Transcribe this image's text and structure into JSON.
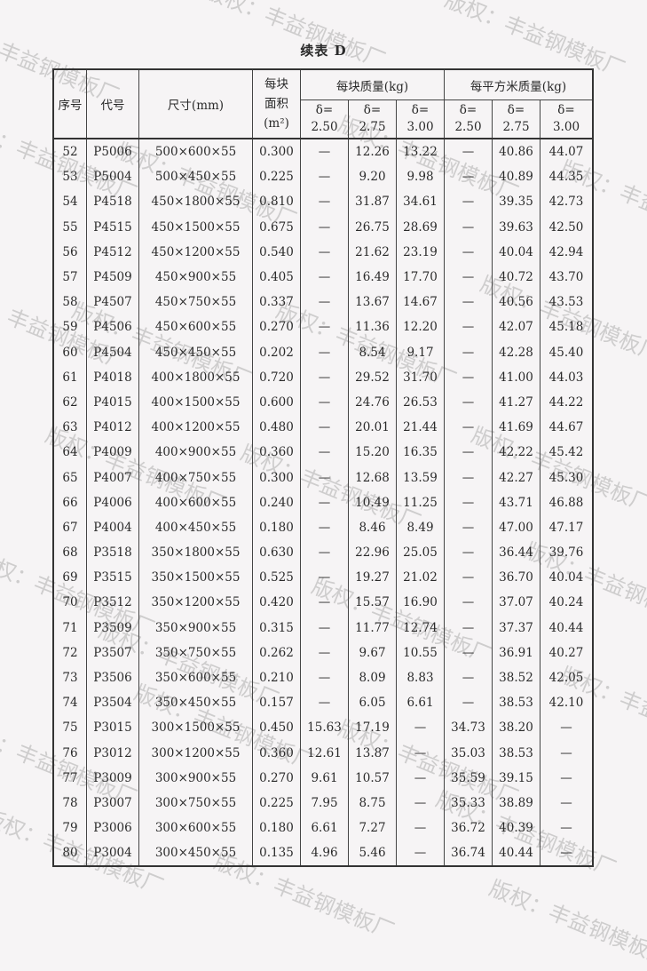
{
  "title": "续表 D",
  "watermark": "版权：丰益钢模板厂",
  "header": {
    "seq": "序号",
    "code": "代号",
    "size": "尺寸(mm)",
    "area_l1": "每块",
    "area_l2": "面积",
    "area_l3": "(m²)",
    "mass_block": "每块质量(kg)",
    "mass_sqm": "每平方米质量(kg)",
    "delta_label": "δ=",
    "thicknesses": [
      "2.50",
      "2.75",
      "3.00",
      "2.50",
      "2.75",
      "3.00"
    ]
  },
  "rows": [
    [
      "52",
      "P5006",
      "500×600×55",
      "0.300",
      "—",
      "12.26",
      "13.22",
      "—",
      "40.86",
      "44.07"
    ],
    [
      "53",
      "P5004",
      "500×450×55",
      "0.225",
      "—",
      "9.20",
      "9.98",
      "—",
      "40.89",
      "44.35"
    ],
    [
      "54",
      "P4518",
      "450×1800×55",
      "0.810",
      "—",
      "31.87",
      "34.61",
      "—",
      "39.35",
      "42.73"
    ],
    [
      "55",
      "P4515",
      "450×1500×55",
      "0.675",
      "—",
      "26.75",
      "28.69",
      "—",
      "39.63",
      "42.50"
    ],
    [
      "56",
      "P4512",
      "450×1200×55",
      "0.540",
      "—",
      "21.62",
      "23.19",
      "—",
      "40.04",
      "42.94"
    ],
    [
      "57",
      "P4509",
      "450×900×55",
      "0.405",
      "—",
      "16.49",
      "17.70",
      "—",
      "40.72",
      "43.70"
    ],
    [
      "58",
      "P4507",
      "450×750×55",
      "0.337",
      "—",
      "13.67",
      "14.67",
      "—",
      "40.56",
      "43.53"
    ],
    [
      "59",
      "P4506",
      "450×600×55",
      "0.270",
      "—",
      "11.36",
      "12.20",
      "—",
      "42.07",
      "45.18"
    ],
    [
      "60",
      "P4504",
      "450×450×55",
      "0.202",
      "—",
      "8.54",
      "9.17",
      "—",
      "42.28",
      "45.40"
    ],
    [
      "61",
      "P4018",
      "400×1800×55",
      "0.720",
      "—",
      "29.52",
      "31.70",
      "—",
      "41.00",
      "44.03"
    ],
    [
      "62",
      "P4015",
      "400×1500×55",
      "0.600",
      "—",
      "24.76",
      "26.53",
      "—",
      "41.27",
      "44.22"
    ],
    [
      "63",
      "P4012",
      "400×1200×55",
      "0.480",
      "—",
      "20.01",
      "21.44",
      "—",
      "41.69",
      "44.67"
    ],
    [
      "64",
      "P4009",
      "400×900×55",
      "0.360",
      "—",
      "15.20",
      "16.35",
      "—",
      "42.22",
      "45.42"
    ],
    [
      "65",
      "P4007",
      "400×750×55",
      "0.300",
      "—",
      "12.68",
      "13.59",
      "—",
      "42.27",
      "45.30"
    ],
    [
      "66",
      "P4006",
      "400×600×55",
      "0.240",
      "—",
      "10.49",
      "11.25",
      "—",
      "43.71",
      "46.88"
    ],
    [
      "67",
      "P4004",
      "400×450×55",
      "0.180",
      "—",
      "8.46",
      "8.49",
      "—",
      "47.00",
      "47.17"
    ],
    [
      "68",
      "P3518",
      "350×1800×55",
      "0.630",
      "—",
      "22.96",
      "25.05",
      "—",
      "36.44",
      "39.76"
    ],
    [
      "69",
      "P3515",
      "350×1500×55",
      "0.525",
      "—",
      "19.27",
      "21.02",
      "—",
      "36.70",
      "40.04"
    ],
    [
      "70",
      "P3512",
      "350×1200×55",
      "0.420",
      "—",
      "15.57",
      "16.90",
      "—",
      "37.07",
      "40.24"
    ],
    [
      "71",
      "P3509",
      "350×900×55",
      "0.315",
      "—",
      "11.77",
      "12.74",
      "—",
      "37.37",
      "40.44"
    ],
    [
      "72",
      "P3507",
      "350×750×55",
      "0.262",
      "—",
      "9.67",
      "10.55",
      "—",
      "36.91",
      "40.27"
    ],
    [
      "73",
      "P3506",
      "350×600×55",
      "0.210",
      "—",
      "8.09",
      "8.83",
      "—",
      "38.52",
      "42.05"
    ],
    [
      "74",
      "P3504",
      "350×450×55",
      "0.157",
      "—",
      "6.05",
      "6.61",
      "—",
      "38.53",
      "42.10"
    ],
    [
      "75",
      "P3015",
      "300×1500×55",
      "0.450",
      "15.63",
      "17.19",
      "—",
      "34.73",
      "38.20",
      "—"
    ],
    [
      "76",
      "P3012",
      "300×1200×55",
      "0.360",
      "12.61",
      "13.87",
      "—",
      "35.03",
      "38.53",
      "—"
    ],
    [
      "77",
      "P3009",
      "300×900×55",
      "0.270",
      "9.61",
      "10.57",
      "—",
      "35.59",
      "39.15",
      "—"
    ],
    [
      "78",
      "P3007",
      "300×750×55",
      "0.225",
      "7.95",
      "8.75",
      "—",
      "35.33",
      "38.89",
      "—"
    ],
    [
      "79",
      "P3006",
      "300×600×55",
      "0.180",
      "6.61",
      "7.27",
      "—",
      "36.72",
      "40.39",
      "—"
    ],
    [
      "80",
      "P3004",
      "300×450×55",
      "0.135",
      "4.96",
      "5.46",
      "—",
      "36.74",
      "40.44",
      "—"
    ]
  ]
}
